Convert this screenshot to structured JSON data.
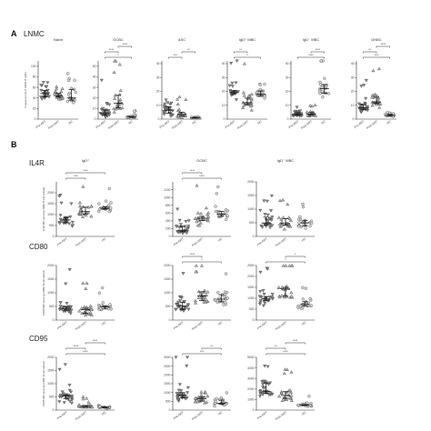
{
  "figure": {
    "panel_a_letter": "A",
    "panel_a_title": "LNMC",
    "panel_b_letter": "B",
    "row_labels": [
      "IL4R",
      "CD80",
      "CD95"
    ]
  },
  "colors": {
    "g0": "#8a8a8a",
    "g1": "#bcbcbc",
    "g2": "#dcdcdc"
  },
  "chart_data": [
    {
      "type": "scatter",
      "panel": "A",
      "title": "Naive",
      "ylabel": "Frequency (% of LNMC B cells)",
      "categories": [
        "Pre-ART",
        "Post-ART",
        "HC"
      ],
      "ymax": 110,
      "yticks": [
        0,
        20,
        40,
        60,
        80,
        100
      ],
      "sig": [],
      "series": [
        {
          "name": "Pre-ART",
          "center": 50,
          "spread": 20,
          "n": 24
        },
        {
          "name": "Post-ART",
          "center": 42,
          "spread": 14,
          "n": 22
        },
        {
          "name": "HC",
          "center": 40,
          "spread": 12,
          "n": 20
        }
      ]
    },
    {
      "type": "scatter",
      "panel": "A",
      "title": "GCBC",
      "ylabel": "",
      "categories": [
        "Pre-ART",
        "Post-ART",
        "HC"
      ],
      "ymax": 55,
      "yticks": [
        0,
        10,
        20,
        30,
        40,
        50
      ],
      "sig": [
        [
          "*",
          0,
          2
        ],
        [
          "****",
          0,
          1
        ],
        [
          "****",
          1,
          2
        ]
      ],
      "series": [
        {
          "name": "Pre-ART",
          "center": 6,
          "spread": 7,
          "n": 24
        },
        {
          "name": "Post-ART",
          "center": 14,
          "spread": 12,
          "n": 22
        },
        {
          "name": "HC",
          "center": 2,
          "spread": 1.5,
          "n": 20
        }
      ]
    },
    {
      "type": "scatter",
      "panel": "A",
      "title": "ASC",
      "ylabel": "",
      "categories": [
        "Pre-ART",
        "Post-ART",
        "HC"
      ],
      "ymax": 42,
      "yticks": [
        0,
        10,
        20,
        30,
        40
      ],
      "sig": [
        [
          "***",
          0,
          1
        ],
        [
          "**",
          1,
          2
        ]
      ],
      "series": [
        {
          "name": "Pre-ART",
          "center": 6,
          "spread": 7,
          "n": 24
        },
        {
          "name": "Post-ART",
          "center": 3,
          "spread": 3,
          "n": 22
        },
        {
          "name": "HC",
          "center": 1,
          "spread": 0.8,
          "n": 20
        }
      ]
    },
    {
      "type": "scatter",
      "panel": "A",
      "title": "IgD⁺ MBC",
      "ylabel": "",
      "categories": [
        "Pre-ART",
        "Post-ART",
        "HC"
      ],
      "ymax": 42,
      "yticks": [
        0,
        10,
        20,
        30,
        40
      ],
      "sig": [
        [
          "*",
          0,
          2
        ],
        [
          "**",
          0,
          1
        ]
      ],
      "series": [
        {
          "name": "Pre-ART",
          "center": 20,
          "spread": 8,
          "n": 24
        },
        {
          "name": "Post-ART",
          "center": 12,
          "spread": 7,
          "n": 22
        },
        {
          "name": "HC",
          "center": 18,
          "spread": 6,
          "n": 20
        }
      ]
    },
    {
      "type": "scatter",
      "panel": "A",
      "title": "IgD⁻ MBC",
      "ylabel": "",
      "categories": [
        "Pre-ART",
        "Post-ART",
        "HC"
      ],
      "ymax": 42,
      "yticks": [
        0,
        10,
        20,
        30,
        40
      ],
      "sig": [
        [
          "****",
          0,
          2
        ],
        [
          "****",
          1,
          2
        ]
      ],
      "series": [
        {
          "name": "Pre-ART",
          "center": 3,
          "spread": 2,
          "n": 24
        },
        {
          "name": "Post-ART",
          "center": 3,
          "spread": 2,
          "n": 22
        },
        {
          "name": "HC",
          "center": 20,
          "spread": 8,
          "n": 20
        }
      ]
    },
    {
      "type": "scatter",
      "panel": "A",
      "title": "DNBC",
      "ylabel": "",
      "categories": [
        "Pre-ART",
        "Post-ART",
        "HC"
      ],
      "ymax": 42,
      "yticks": [
        0,
        10,
        20,
        30,
        40
      ],
      "sig": [
        [
          "***",
          0,
          2
        ],
        [
          "**",
          0,
          1
        ],
        [
          "****",
          1,
          2
        ]
      ],
      "series": [
        {
          "name": "Pre-ART",
          "center": 8,
          "spread": 5,
          "n": 24
        },
        {
          "name": "Post-ART",
          "center": 12,
          "spread": 6,
          "n": 22
        },
        {
          "name": "HC",
          "center": 3,
          "spread": 2,
          "n": 20
        }
      ]
    },
    {
      "type": "scatter",
      "panel": "B",
      "row": "IL4R",
      "title": "IgD⁺",
      "ylabel": "IL4R MFI (among LNMC B-cell subset)",
      "categories": [
        "Pre-ART",
        "Post-ART",
        "HC"
      ],
      "ymax": 2500,
      "yticks": [
        0,
        500,
        1000,
        1500,
        2000
      ],
      "sig": [
        [
          "***",
          0,
          1
        ],
        [
          "****",
          0,
          2
        ]
      ],
      "series": [
        {
          "name": "Pre-ART",
          "center": 650,
          "spread": 300,
          "n": 26
        },
        {
          "name": "Post-ART",
          "center": 1100,
          "spread": 350,
          "n": 24
        },
        {
          "name": "HC",
          "center": 1300,
          "spread": 280,
          "n": 20
        }
      ]
    },
    {
      "type": "scatter",
      "panel": "B",
      "row": "IL4R",
      "title": "GCBC",
      "ylabel": "",
      "categories": [
        "Pre-ART",
        "Post-ART",
        "HC"
      ],
      "ymax": 1400,
      "yticks": [
        0,
        200,
        400,
        600,
        800,
        1000,
        1200
      ],
      "sig": [
        [
          "****",
          0,
          2
        ],
        [
          "****",
          0,
          1
        ]
      ],
      "series": [
        {
          "name": "Pre-ART",
          "center": 150,
          "spread": 180,
          "n": 26
        },
        {
          "name": "Post-ART",
          "center": 450,
          "spread": 220,
          "n": 24
        },
        {
          "name": "HC",
          "center": 550,
          "spread": 200,
          "n": 20
        }
      ]
    },
    {
      "type": "scatter",
      "panel": "B",
      "row": "IL4R",
      "title": "IgD⁻ MBC",
      "ylabel": "",
      "categories": [
        "Pre-ART",
        "Post-ART",
        "HC"
      ],
      "ymax": 2000,
      "yticks": [
        0,
        500,
        1000,
        1500,
        2000
      ],
      "sig": [],
      "series": [
        {
          "name": "Pre-ART",
          "center": 450,
          "spread": 300,
          "n": 26
        },
        {
          "name": "Post-ART",
          "center": 480,
          "spread": 280,
          "n": 24
        },
        {
          "name": "HC",
          "center": 420,
          "spread": 200,
          "n": 20
        }
      ]
    },
    {
      "type": "scatter",
      "panel": "B",
      "row": "CD80",
      "title": "",
      "ylabel": "CD80 MFI (among LNMC B-cell subset)",
      "categories": [
        "Pre-ART",
        "Post-ART",
        "HC"
      ],
      "ymax": 2000,
      "yticks": [
        0,
        500,
        1000,
        1500,
        2000
      ],
      "sig": [],
      "series": [
        {
          "name": "Pre-ART",
          "center": 450,
          "spread": 350,
          "n": 26
        },
        {
          "name": "Post-ART",
          "center": 300,
          "spread": 250,
          "n": 24
        },
        {
          "name": "HC",
          "center": 450,
          "spread": 180,
          "n": 20
        }
      ]
    },
    {
      "type": "scatter",
      "panel": "B",
      "row": "CD80",
      "title": "",
      "ylabel": "",
      "categories": [
        "Pre-ART",
        "Post-ART",
        "HC"
      ],
      "ymax": 2000,
      "yticks": [
        0,
        500,
        1000,
        1500,
        2000
      ],
      "sig": [
        [
          "*",
          0,
          2
        ],
        [
          "****",
          0,
          1
        ]
      ],
      "series": [
        {
          "name": "Pre-ART",
          "center": 500,
          "spread": 300,
          "n": 26
        },
        {
          "name": "Post-ART",
          "center": 800,
          "spread": 350,
          "n": 24
        },
        {
          "name": "HC",
          "center": 700,
          "spread": 250,
          "n": 20
        }
      ]
    },
    {
      "type": "scatter",
      "panel": "B",
      "row": "CD80",
      "title": "",
      "ylabel": "",
      "categories": [
        "Pre-ART",
        "Post-ART",
        "HC"
      ],
      "ymax": 2500,
      "yticks": [
        0,
        500,
        1000,
        1500,
        2000,
        2500
      ],
      "sig": [
        [
          "*",
          0,
          2
        ],
        [
          "*",
          1,
          2
        ]
      ],
      "series": [
        {
          "name": "Pre-ART",
          "center": 1000,
          "spread": 450,
          "n": 26
        },
        {
          "name": "Post-ART",
          "center": 1200,
          "spread": 500,
          "n": 24
        },
        {
          "name": "HC",
          "center": 700,
          "spread": 250,
          "n": 20
        }
      ]
    },
    {
      "type": "scatter",
      "panel": "B",
      "row": "CD95",
      "title": "",
      "ylabel": "CD95 MFI (among LNMC B-cell subset)",
      "categories": [
        "Pre-ART",
        "Post-ART",
        "HC"
      ],
      "ymax": 2000,
      "yticks": [
        0,
        500,
        1000,
        1500,
        2000
      ],
      "sig": [
        [
          "****",
          0,
          2
        ],
        [
          "****",
          0,
          1
        ],
        [
          "****",
          1,
          2
        ]
      ],
      "series": [
        {
          "name": "Pre-ART",
          "center": 450,
          "spread": 350,
          "n": 26
        },
        {
          "name": "Post-ART",
          "center": 150,
          "spread": 100,
          "n": 24
        },
        {
          "name": "HC",
          "center": 100,
          "spread": 60,
          "n": 20
        }
      ]
    },
    {
      "type": "scatter",
      "panel": "B",
      "row": "CD95",
      "title": "",
      "ylabel": "",
      "categories": [
        "Pre-ART",
        "Post-ART",
        "HC"
      ],
      "ymax": 3000,
      "yticks": [
        0,
        500,
        1000,
        1500,
        2000,
        2500,
        3000
      ],
      "sig": [
        [
          "***",
          0,
          2
        ],
        [
          "**",
          1,
          2
        ]
      ],
      "series": [
        {
          "name": "Pre-ART",
          "center": 900,
          "spread": 600,
          "n": 26
        },
        {
          "name": "Post-ART",
          "center": 700,
          "spread": 400,
          "n": 24
        },
        {
          "name": "HC",
          "center": 400,
          "spread": 200,
          "n": 20
        }
      ]
    },
    {
      "type": "scatter",
      "panel": "B",
      "row": "CD95",
      "title": "",
      "ylabel": "",
      "categories": [
        "Pre-ART",
        "Post-ART",
        "HC"
      ],
      "ymax": 5000,
      "yticks": [
        0,
        1000,
        2000,
        3000,
        4000,
        5000
      ],
      "sig": [
        [
          "****",
          0,
          2
        ],
        [
          "**",
          0,
          1
        ],
        [
          "****",
          1,
          2
        ]
      ],
      "series": [
        {
          "name": "Pre-ART",
          "center": 1800,
          "spread": 900,
          "n": 26
        },
        {
          "name": "Post-ART",
          "center": 1200,
          "spread": 600,
          "n": 24
        },
        {
          "name": "HC",
          "center": 500,
          "spread": 200,
          "n": 20
        }
      ]
    }
  ]
}
